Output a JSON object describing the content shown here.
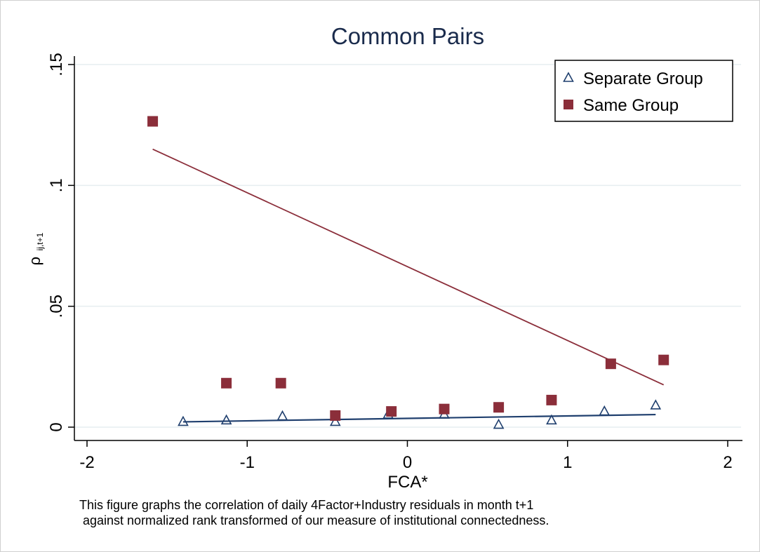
{
  "chart_data": {
    "type": "scatter",
    "title": "Common Pairs",
    "xlabel": "FCA*",
    "ylabel": {
      "symbol": "ρ",
      "subscript": "ij,t+1"
    },
    "xlim": [
      -2.05,
      2.05
    ],
    "ylim": [
      -0.005,
      0.153
    ],
    "xticks": [
      -2,
      -1,
      0,
      1,
      2
    ],
    "xtick_labels": [
      "-2",
      "-1",
      "0",
      "1",
      "2"
    ],
    "yticks": [
      0,
      0.05,
      0.1,
      0.15
    ],
    "ytick_labels": [
      "0",
      ".05",
      ".1",
      ".15"
    ],
    "grid": "horizontal",
    "legend_position": "top-right",
    "series": [
      {
        "name": "Separate Group",
        "marker": "hollow-triangle",
        "color": "#1f3f6e",
        "x": [
          -1.4,
          -1.13,
          -0.78,
          -0.45,
          -0.12,
          0.23,
          0.57,
          0.9,
          1.23,
          1.55
        ],
        "y": [
          0.0022,
          0.0028,
          0.0045,
          0.0022,
          0.0052,
          0.0052,
          0.001,
          0.0028,
          0.0065,
          0.009
        ],
        "fit": {
          "x": [
            -1.4,
            1.55
          ],
          "y": [
            0.0022,
            0.0052
          ]
        }
      },
      {
        "name": "Same Group",
        "marker": "filled-square",
        "color": "#8b2e3a",
        "x": [
          -1.59,
          -1.13,
          -0.79,
          -0.45,
          -0.1,
          0.23,
          0.57,
          0.9,
          1.27,
          1.6
        ],
        "y": [
          0.1265,
          0.0182,
          0.0182,
          0.0048,
          0.0065,
          0.0075,
          0.0082,
          0.0112,
          0.0262,
          0.0278
        ],
        "fit": {
          "x": [
            -1.59,
            1.6
          ],
          "y": [
            0.115,
            0.0175
          ]
        }
      }
    ]
  },
  "caption": [
    "This figure graphs the correlation of daily 4Factor+Industry residuals in month t+1",
    " against normalized rank transformed of our measure of institutional connectedness."
  ]
}
